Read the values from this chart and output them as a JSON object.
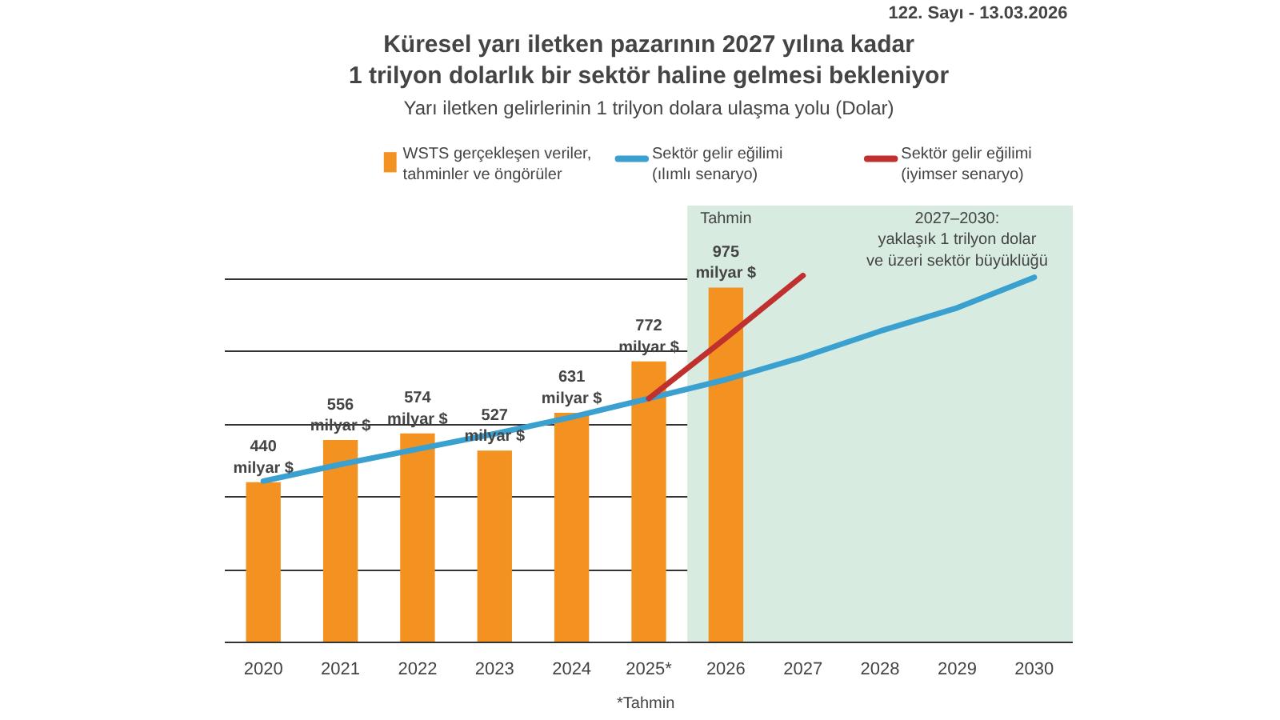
{
  "chart_data": {
    "type": "bar",
    "title": "Küresel yarı iletken pazarının 2027 yılına kadar\n1 trilyon dolarlık bir sektör haline gelmesi bekleniyor",
    "subtitle": "Yarı iletken gelirlerinin 1 trilyon dolara ulaşma yolu (Dolar)",
    "x": [
      2020,
      2021,
      2022,
      2023,
      2024,
      2025,
      2026,
      2027,
      2028,
      2029,
      2030
    ],
    "xlim": [
      2019.5,
      2030.5
    ],
    "xticks": [
      2020,
      2021,
      2022,
      2023,
      2024,
      {
        "value": 2025,
        "label": "2025*"
      },
      2026,
      2027,
      2028,
      2029,
      2030
    ],
    "series": [
      {
        "name": "WSTS gerçekleşen veriler,\ntahminler ve öngörüler",
        "color": "#f39220",
        "values": [
          440,
          556,
          574,
          527,
          631,
          772,
          975,
          null,
          null,
          null,
          null
        ],
        "value_labels": [
          "440\nmilyar $",
          "556\nmilyar $",
          "574\nmilyar $",
          "527\nmilyar $",
          "631\nmilyar $",
          "772\nmilyar $",
          "975\nmilyar $",
          null,
          null,
          null,
          null
        ]
      },
      {
        "name": "Sektör gelir eğilimi\n(ılımlı senaryo)",
        "type": "line",
        "color": "#3aa0d0",
        "values": [
          443,
          489,
          531,
          573,
          619,
          670,
          722,
          784,
          855,
          919,
          1003
        ]
      },
      {
        "name": "Sektör gelir eğilimi\n(iyimser senaryo)",
        "type": "line",
        "color": "#c0302e",
        "values": [
          null,
          null,
          null,
          null,
          null,
          670,
          836,
          1008,
          null,
          null,
          null
        ]
      }
    ],
    "ylim": [
      0,
      1200
    ],
    "yticks": [
      {
        "value": 0,
        "label": null
      },
      {
        "value": 200,
        "label": null
      },
      {
        "value": 400,
        "label": null
      },
      {
        "value": 600,
        "label": null
      },
      {
        "value": 800,
        "label": null
      },
      {
        "value": 1000,
        "label": null
      }
    ],
    "tick_labels": "x",
    "grid": "y",
    "legend": "top",
    "bands": [
      {
        "axis": "x",
        "from": 2025.5,
        "to": 2030.5,
        "label": "Tahmin",
        "color": "#d7ebe0"
      }
    ],
    "annotations": [
      "2027–2030:\nyaklaşık 1 trilyon dolar\nve üzeri sektör büyüklüğü",
      "*Tahmin",
      "122. Sayı - 13.03.2026"
    ]
  }
}
